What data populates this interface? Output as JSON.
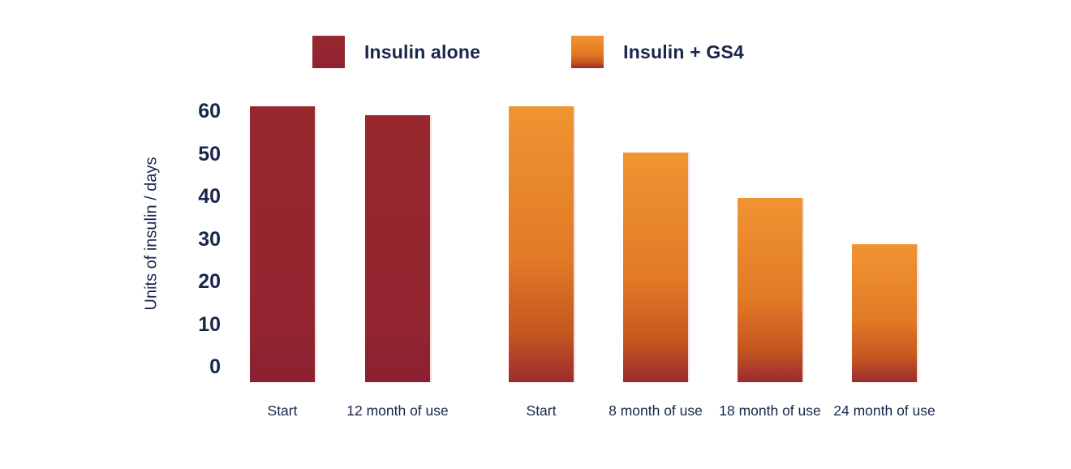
{
  "colors": {
    "background": "#ffffff",
    "text_navy": "#17264A",
    "red_bar": "#952731",
    "orange_gradient_top": "#F09432",
    "orange_gradient_mid": "#D2601F",
    "orange_gradient_bottom": "#9C2B2E",
    "bar_edge_highlight": "#F3DDD8"
  },
  "chart_data": {
    "type": "bar",
    "title": "",
    "xlabel": "",
    "ylabel": "Units of insulin / days",
    "ylim": [
      0,
      60
    ],
    "yticks": [
      60,
      50,
      40,
      30,
      20,
      10,
      0
    ],
    "grid": false,
    "axis_lines": false,
    "legend_position": "top-center",
    "groups": [
      {
        "name": "Insulin alone",
        "swatch": "red",
        "color": "#952731",
        "points": [
          {
            "label": "Start",
            "value": 60
          },
          {
            "label": "12 month of use",
            "value": 58
          }
        ]
      },
      {
        "name": "Insulin + GS4",
        "swatch": "orange-gradient",
        "gradient": [
          "#F09432",
          "#D2601F",
          "#9C2B2E"
        ],
        "points": [
          {
            "label": "Start",
            "value": 60
          },
          {
            "label": "8 month of use",
            "value": 50
          },
          {
            "label": "18 month of use",
            "value": 40
          },
          {
            "label": "24 month of use",
            "value": 30
          }
        ]
      }
    ]
  }
}
